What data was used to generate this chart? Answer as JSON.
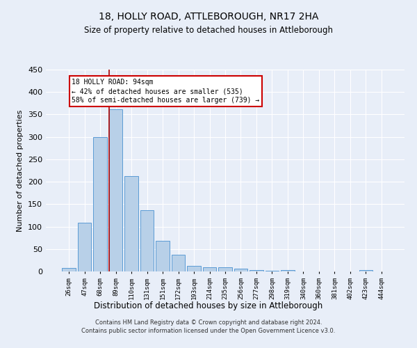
{
  "title_line1": "18, HOLLY ROAD, ATTLEBOROUGH, NR17 2HA",
  "title_line2": "Size of property relative to detached houses in Attleborough",
  "xlabel": "Distribution of detached houses by size in Attleborough",
  "ylabel": "Number of detached properties",
  "categories": [
    "26sqm",
    "47sqm",
    "68sqm",
    "89sqm",
    "110sqm",
    "131sqm",
    "151sqm",
    "172sqm",
    "193sqm",
    "214sqm",
    "235sqm",
    "256sqm",
    "277sqm",
    "298sqm",
    "319sqm",
    "340sqm",
    "360sqm",
    "381sqm",
    "402sqm",
    "423sqm",
    "444sqm"
  ],
  "values": [
    8,
    108,
    300,
    362,
    212,
    136,
    68,
    38,
    13,
    10,
    9,
    6,
    3,
    1,
    3,
    0,
    0,
    0,
    0,
    3,
    0
  ],
  "bar_color": "#b8d0e8",
  "bar_edge_color": "#5b9bd5",
  "red_line_bar_index": 3,
  "annotation_text_line1": "18 HOLLY ROAD: 94sqm",
  "annotation_text_line2": "← 42% of detached houses are smaller (535)",
  "annotation_text_line3": "58% of semi-detached houses are larger (739) →",
  "annotation_box_color": "#ffffff",
  "annotation_box_edge_color": "#cc0000",
  "red_line_color": "#aa0000",
  "ylim": [
    0,
    450
  ],
  "yticks": [
    0,
    50,
    100,
    150,
    200,
    250,
    300,
    350,
    400,
    450
  ],
  "footer_line1": "Contains HM Land Registry data © Crown copyright and database right 2024.",
  "footer_line2": "Contains public sector information licensed under the Open Government Licence v3.0.",
  "background_color": "#e8eef8",
  "plot_bg_color": "#e8eef8",
  "grid_color": "#ffffff"
}
